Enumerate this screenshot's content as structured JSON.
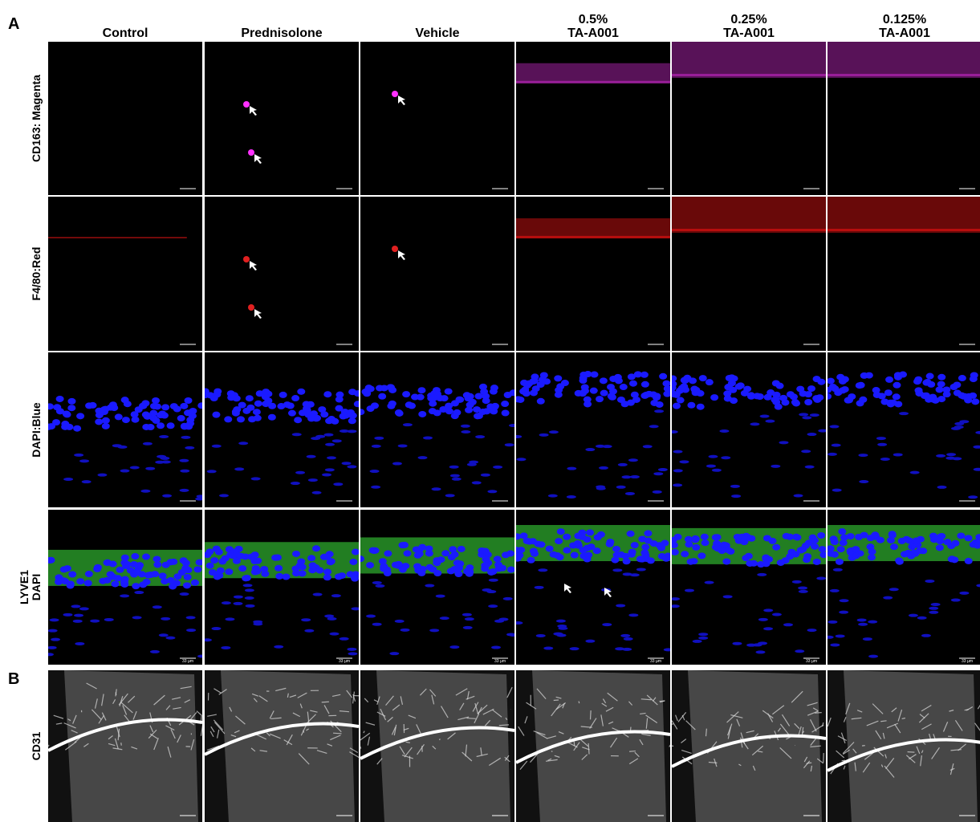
{
  "panel_labels": [
    "A",
    "B"
  ],
  "columns": [
    {
      "lines": [
        "Control"
      ]
    },
    {
      "lines": [
        "Prednisolone"
      ]
    },
    {
      "lines": [
        "Vehicle"
      ]
    },
    {
      "lines": [
        "0.5%",
        "TA-A001"
      ]
    },
    {
      "lines": [
        "0.25%",
        "TA-A001"
      ]
    },
    {
      "lines": [
        "0.125%",
        "TA-A001"
      ]
    }
  ],
  "rows": [
    {
      "lines": [
        "CD163: Magenta"
      ]
    },
    {
      "lines": [
        "F4/80:Red"
      ]
    },
    {
      "lines": [
        "DAPI:Blue"
      ]
    },
    {
      "lines": [
        "LYVE1",
        "DAPI"
      ]
    },
    {
      "lines": [
        "CD31"
      ]
    }
  ],
  "scale_bar_label": "33 µm"
}
